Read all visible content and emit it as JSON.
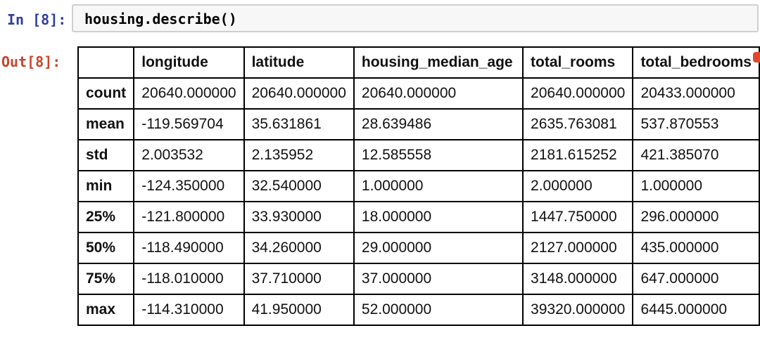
{
  "notebook": {
    "input_prompt": "In [8]:",
    "output_prompt": "Out[8]:",
    "input_code": "housing.describe()"
  },
  "table": {
    "columns": [
      "",
      "longitude",
      "latitude",
      "housing_median_age",
      "total_rooms",
      "total_bedrooms"
    ],
    "rows": [
      {
        "label": "count",
        "values": [
          "20640.000000",
          "20640.000000",
          "20640.000000",
          "20640.000000",
          "20433.000000"
        ]
      },
      {
        "label": "mean",
        "values": [
          "-119.569704",
          "35.631861",
          "28.639486",
          "2635.763081",
          "537.870553"
        ]
      },
      {
        "label": "std",
        "values": [
          "2.003532",
          "2.135952",
          "12.585558",
          "2181.615252",
          "421.385070"
        ]
      },
      {
        "label": "min",
        "values": [
          "-124.350000",
          "32.540000",
          "1.000000",
          "2.000000",
          "1.000000"
        ]
      },
      {
        "label": "25%",
        "values": [
          "-121.800000",
          "33.930000",
          "18.000000",
          "1447.750000",
          "296.000000"
        ]
      },
      {
        "label": "50%",
        "values": [
          "-118.490000",
          "34.260000",
          "29.000000",
          "2127.000000",
          "435.000000"
        ]
      },
      {
        "label": "75%",
        "values": [
          "-118.010000",
          "37.710000",
          "37.000000",
          "3148.000000",
          "647.000000"
        ]
      },
      {
        "label": "max",
        "values": [
          "-114.310000",
          "41.950000",
          "52.000000",
          "39320.000000",
          "6445.000000"
        ]
      }
    ]
  },
  "colors": {
    "input_prompt": "#2F3F9E",
    "output_prompt": "#C8462B",
    "table_border": "#000000",
    "input_box_bg": "#F7F7F7",
    "input_box_border": "#CFCFCF",
    "red_mark": "#E2492C"
  }
}
